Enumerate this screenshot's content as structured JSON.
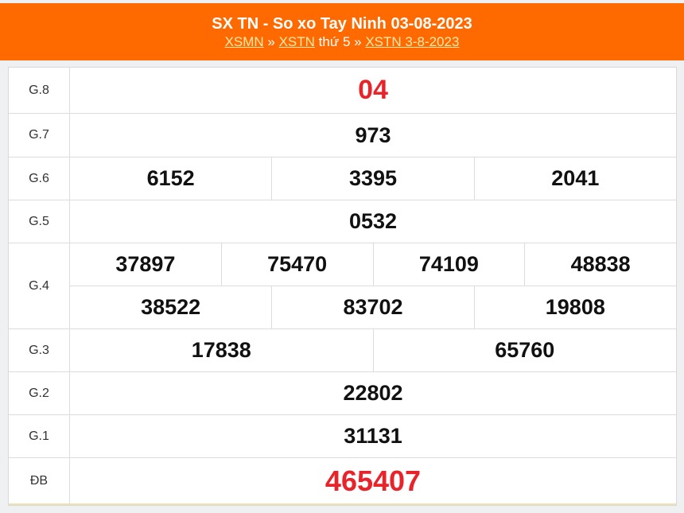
{
  "header": {
    "title": "SX TN - So xo Tay Ninh 03-08-2023",
    "link1": "XSMN",
    "sep1": " » ",
    "link2": "XSTN",
    "day": " thứ 5 » ",
    "link3": "XSTN 3-8-2023"
  },
  "colors": {
    "header_bg": "#ff6a00",
    "special": "#e8232a"
  },
  "rows": [
    {
      "label": "G.8",
      "values": [
        [
          "04"
        ]
      ]
    },
    {
      "label": "G.7",
      "values": [
        [
          "973"
        ]
      ]
    },
    {
      "label": "G.6",
      "values": [
        [
          "6152",
          "3395",
          "2041"
        ]
      ]
    },
    {
      "label": "G.5",
      "values": [
        [
          "0532"
        ]
      ]
    },
    {
      "label": "G.4",
      "values": [
        [
          "37897",
          "75470",
          "74109",
          "48838"
        ],
        [
          "38522",
          "83702",
          "19808"
        ]
      ]
    },
    {
      "label": "G.3",
      "values": [
        [
          "17838",
          "65760"
        ]
      ]
    },
    {
      "label": "G.2",
      "values": [
        [
          "22802"
        ]
      ]
    },
    {
      "label": "G.1",
      "values": [
        [
          "31131"
        ]
      ]
    },
    {
      "label": "ĐB",
      "values": [
        [
          "465407"
        ]
      ]
    }
  ]
}
